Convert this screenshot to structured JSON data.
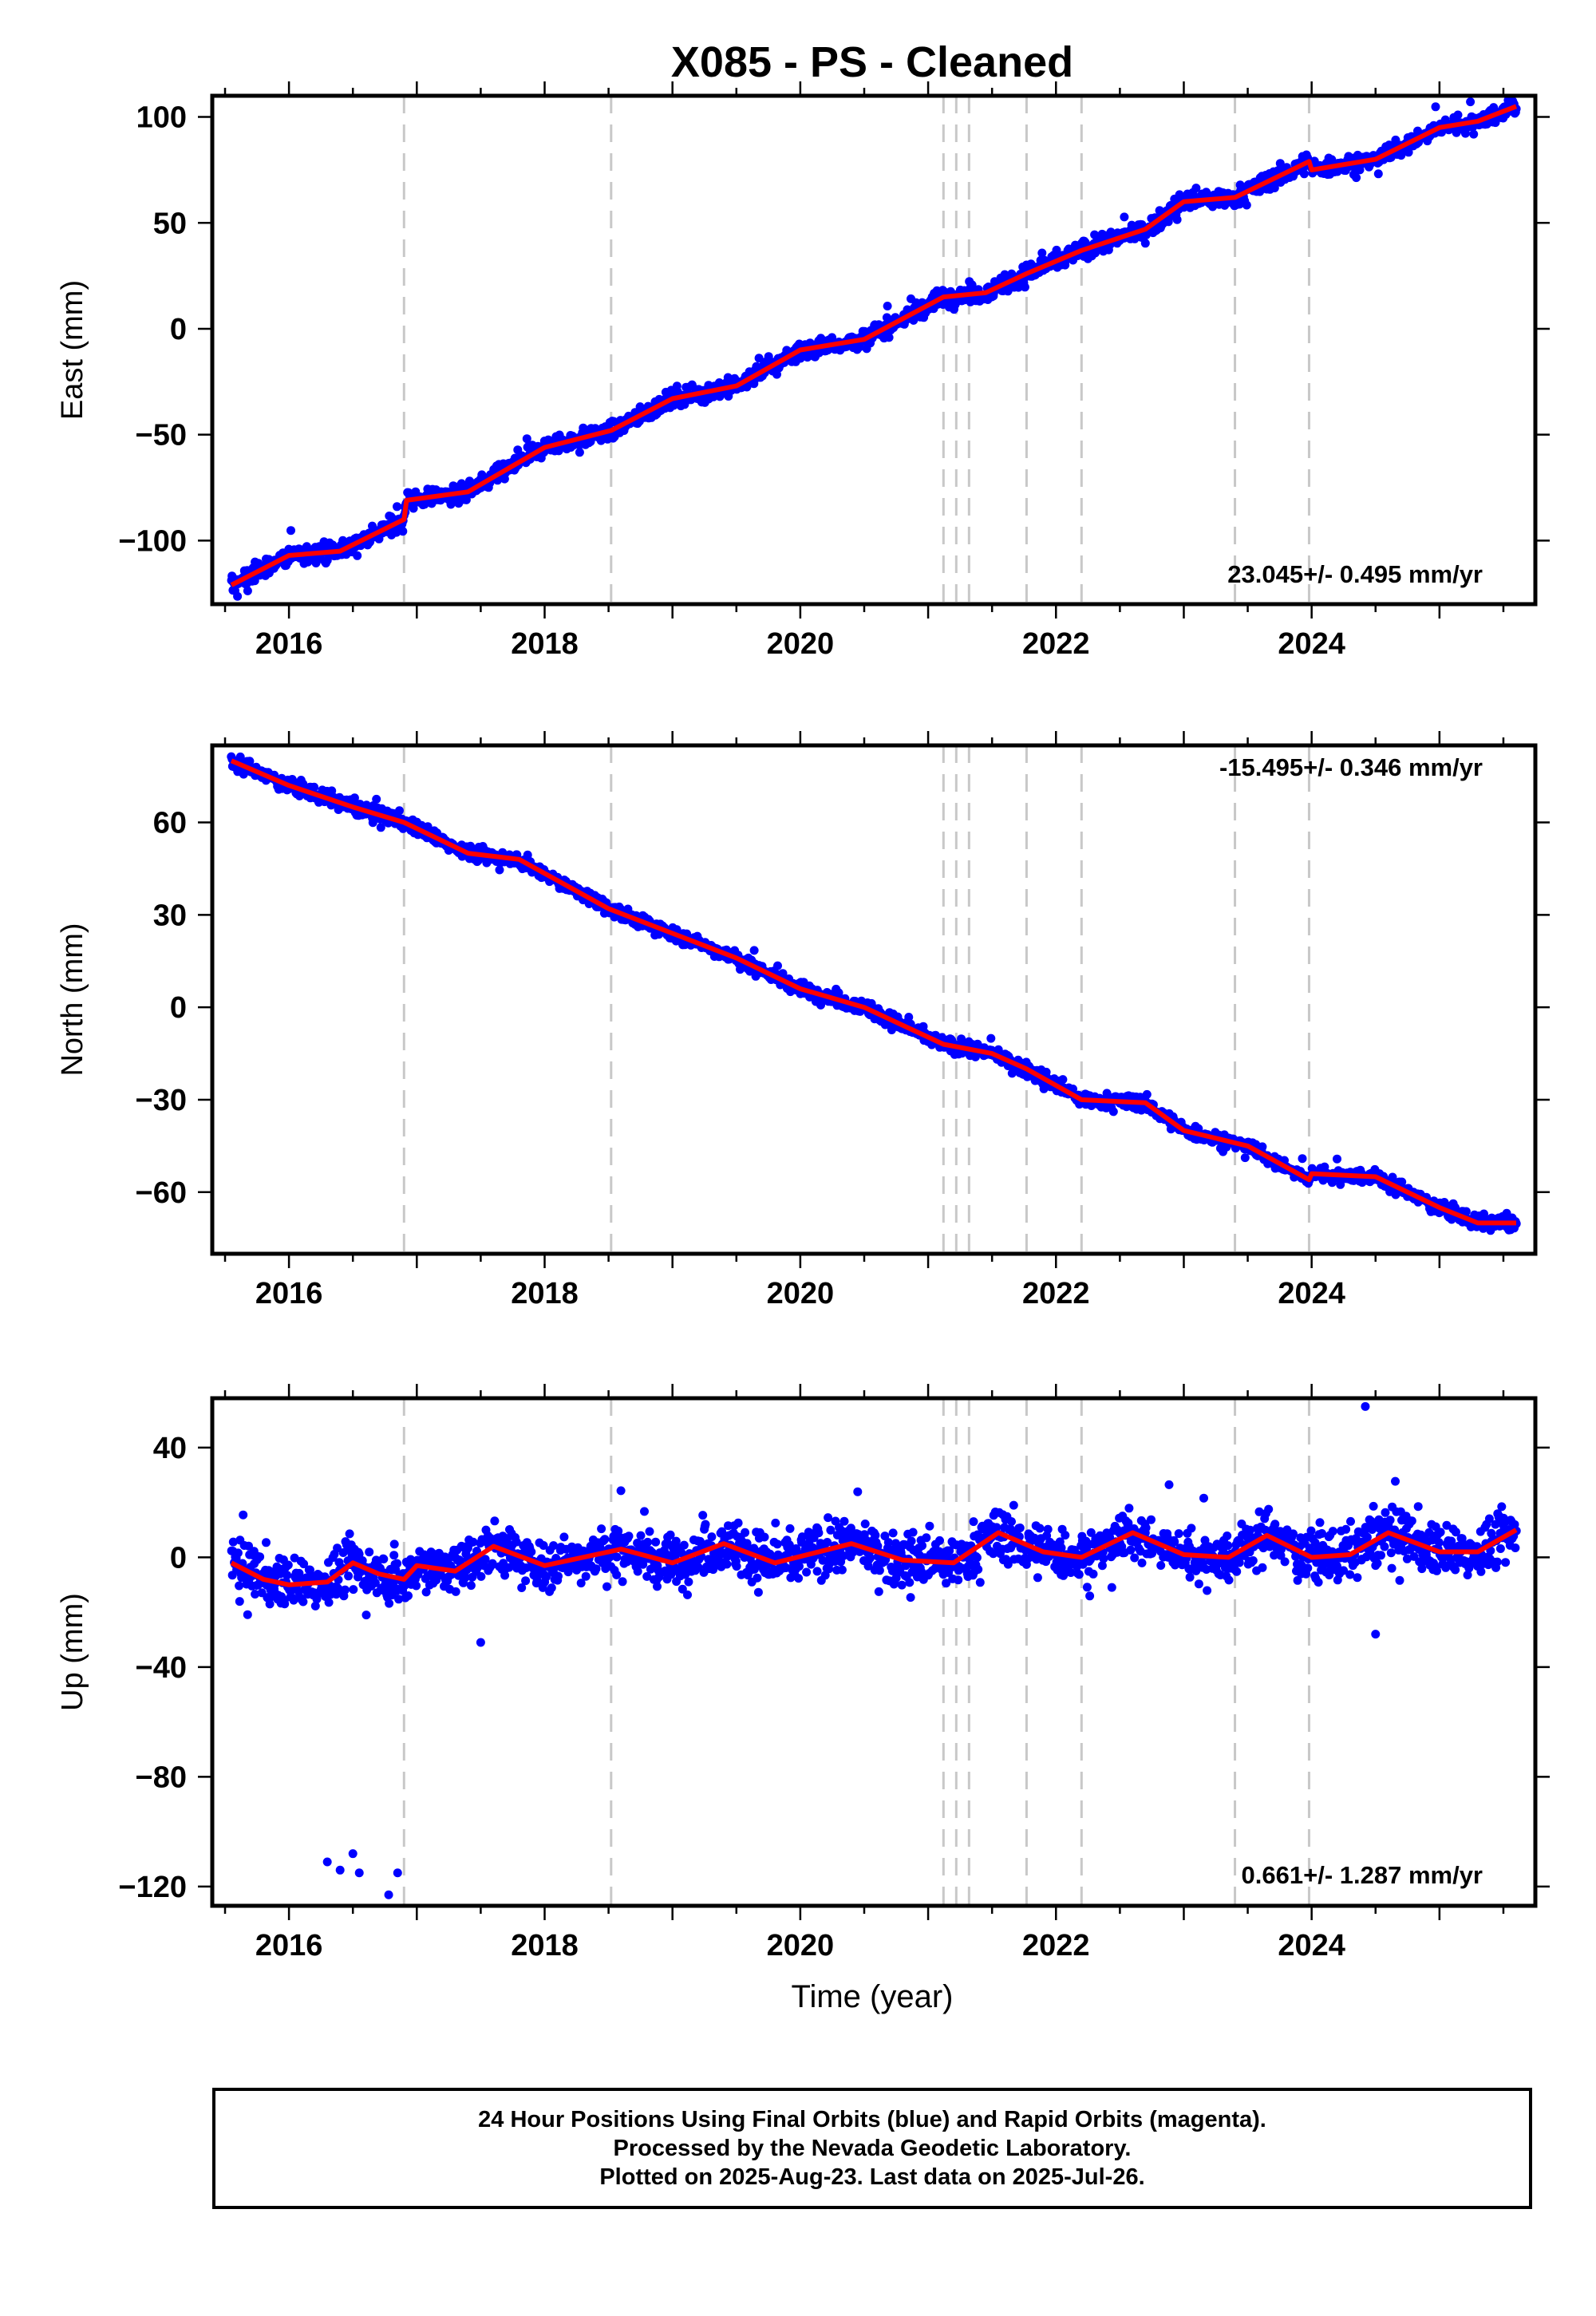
{
  "title": "X085  - PS - Cleaned",
  "x_axis_label": "Time (year)",
  "footer": {
    "line1": "24 Hour Positions Using Final Orbits (blue) and Rapid Orbits (magenta).",
    "line2": "Processed by the Nevada Geodetic Laboratory.",
    "line3": "Plotted on 2025-Aug-23. Last data on 2025-Jul-26."
  },
  "colors": {
    "points": "#0000ff",
    "fit": "#ff0000",
    "events": "#c8c8c8"
  },
  "chart_data": [
    {
      "type": "scatter",
      "panel": "east",
      "ylabel": "East (mm)",
      "rate_label": "23.045+/- 0.495 mm/yr",
      "xlim": [
        2015.4,
        2025.75
      ],
      "ylim": [
        -130,
        110
      ],
      "yticks": [
        -100,
        -50,
        0,
        50,
        100
      ],
      "xticks": [
        2016,
        2018,
        2020,
        2022,
        2024
      ],
      "event_lines": [
        2016.9,
        2018.52,
        2021.12,
        2021.22,
        2021.32,
        2021.77,
        2022.2,
        2023.4,
        2023.98
      ],
      "trend": [
        [
          2015.55,
          -121
        ],
        [
          2016.0,
          -107
        ],
        [
          2016.4,
          -105
        ],
        [
          2016.9,
          -90
        ],
        [
          2016.92,
          -81
        ],
        [
          2017.4,
          -77
        ],
        [
          2018.0,
          -56
        ],
        [
          2018.52,
          -48
        ],
        [
          2019.0,
          -33
        ],
        [
          2019.5,
          -27
        ],
        [
          2020.0,
          -10
        ],
        [
          2020.5,
          -5
        ],
        [
          2021.12,
          15
        ],
        [
          2021.45,
          17
        ],
        [
          2021.77,
          26
        ],
        [
          2022.2,
          37
        ],
        [
          2022.7,
          47
        ],
        [
          2023.0,
          60
        ],
        [
          2023.4,
          62
        ],
        [
          2023.98,
          79
        ],
        [
          2024.0,
          75
        ],
        [
          2024.5,
          80
        ],
        [
          2025.0,
          95
        ],
        [
          2025.3,
          98
        ],
        [
          2025.6,
          105
        ]
      ],
      "noise": 3.0,
      "outliers": []
    },
    {
      "type": "scatter",
      "panel": "north",
      "ylabel": "North (mm)",
      "rate_label": "-15.495+/- 0.346 mm/yr",
      "xlim": [
        2015.4,
        2025.75
      ],
      "ylim": [
        -80,
        85
      ],
      "yticks": [
        -60,
        -30,
        0,
        30,
        60
      ],
      "xticks": [
        2016,
        2018,
        2020,
        2022,
        2024
      ],
      "event_lines": [
        2016.9,
        2018.52,
        2021.12,
        2021.22,
        2021.32,
        2021.77,
        2022.2,
        2023.4,
        2023.98
      ],
      "trend": [
        [
          2015.55,
          80
        ],
        [
          2016.0,
          72
        ],
        [
          2016.5,
          65
        ],
        [
          2016.9,
          60
        ],
        [
          2017.4,
          50
        ],
        [
          2017.8,
          48
        ],
        [
          2018.5,
          32
        ],
        [
          2019.0,
          24
        ],
        [
          2019.5,
          16
        ],
        [
          2020.0,
          6
        ],
        [
          2020.5,
          0
        ],
        [
          2021.12,
          -12
        ],
        [
          2021.5,
          -15
        ],
        [
          2021.77,
          -20
        ],
        [
          2022.2,
          -30
        ],
        [
          2022.7,
          -31
        ],
        [
          2023.0,
          -40
        ],
        [
          2023.5,
          -45
        ],
        [
          2023.98,
          -56
        ],
        [
          2024.0,
          -54
        ],
        [
          2024.5,
          -55
        ],
        [
          2025.0,
          -65
        ],
        [
          2025.3,
          -70
        ],
        [
          2025.6,
          -70
        ]
      ],
      "noise": 1.6,
      "outliers": []
    },
    {
      "type": "scatter",
      "panel": "up",
      "ylabel": "Up (mm)",
      "rate_label": "0.661+/- 1.287 mm/yr",
      "xlim": [
        2015.4,
        2025.75
      ],
      "ylim": [
        -127,
        58
      ],
      "yticks": [
        -120,
        -80,
        -40,
        0,
        40
      ],
      "xticks": [
        2016,
        2018,
        2020,
        2022,
        2024
      ],
      "event_lines": [
        2016.9,
        2018.52,
        2021.12,
        2021.22,
        2021.32,
        2021.77,
        2022.2,
        2023.4,
        2023.98
      ],
      "trend": [
        [
          2015.55,
          -2
        ],
        [
          2015.8,
          -8
        ],
        [
          2016.0,
          -10
        ],
        [
          2016.3,
          -9
        ],
        [
          2016.5,
          -2
        ],
        [
          2016.7,
          -6
        ],
        [
          2016.9,
          -8
        ],
        [
          2017.0,
          -3
        ],
        [
          2017.3,
          -5
        ],
        [
          2017.6,
          4
        ],
        [
          2018.0,
          -3
        ],
        [
          2018.6,
          3
        ],
        [
          2019.0,
          -2
        ],
        [
          2019.4,
          5
        ],
        [
          2019.8,
          -2
        ],
        [
          2020.4,
          5
        ],
        [
          2020.8,
          -1
        ],
        [
          2021.2,
          -2
        ],
        [
          2021.55,
          9
        ],
        [
          2021.9,
          2
        ],
        [
          2022.2,
          0
        ],
        [
          2022.6,
          9
        ],
        [
          2023.0,
          1
        ],
        [
          2023.35,
          0
        ],
        [
          2023.65,
          8
        ],
        [
          2024.0,
          0
        ],
        [
          2024.3,
          1
        ],
        [
          2024.6,
          9
        ],
        [
          2025.0,
          2
        ],
        [
          2025.3,
          2
        ],
        [
          2025.6,
          10
        ]
      ],
      "noise": 6.5,
      "outliers": [
        [
          2016.3,
          -111
        ],
        [
          2016.4,
          -114
        ],
        [
          2016.5,
          -108
        ],
        [
          2016.55,
          -115
        ],
        [
          2016.78,
          -123
        ],
        [
          2016.85,
          -115
        ],
        [
          2024.42,
          55
        ],
        [
          2024.5,
          -28
        ],
        [
          2017.5,
          -31
        ]
      ]
    }
  ]
}
